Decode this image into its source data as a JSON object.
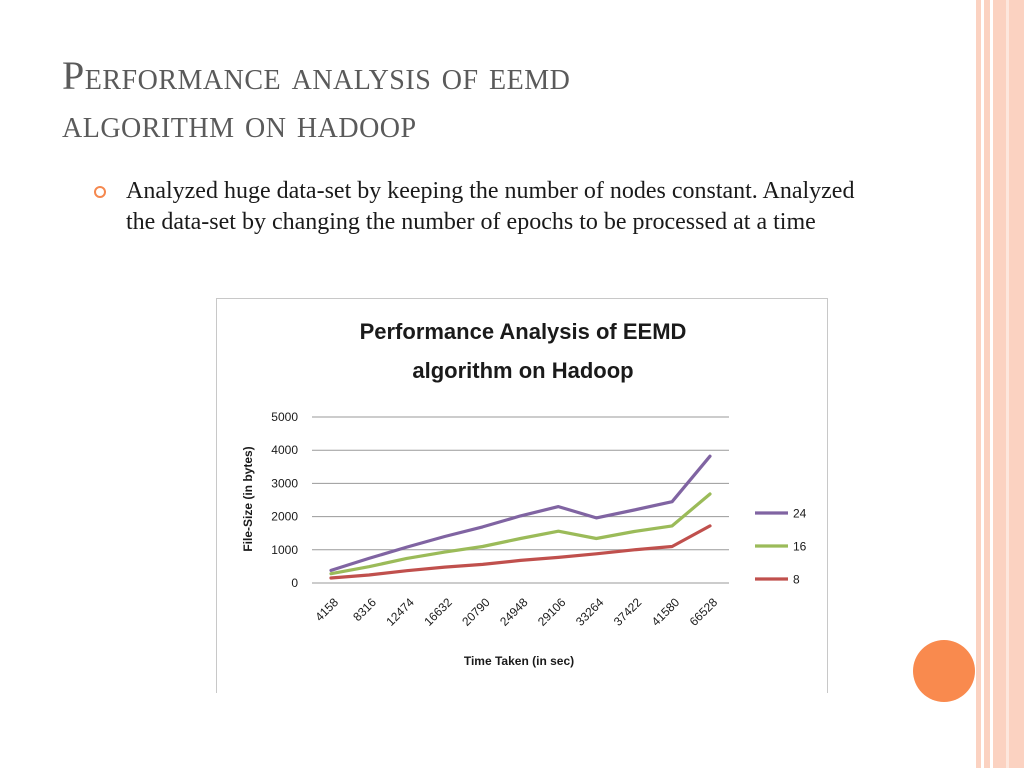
{
  "slide": {
    "title_line1": "Performance analysis of eemd",
    "title_line2": "algorithm on hadoop",
    "bullet": "Analyzed huge data-set by keeping the number of nodes constant. Analyzed the data-set by changing the number of epochs to be processed at a time"
  },
  "colors": {
    "accent": "#f98a4e",
    "bar_light": "#fbd2c1",
    "title_text": "#5a5a5a"
  },
  "chart_data": {
    "type": "line",
    "title_line1": "Performance Analysis of EEMD",
    "title_line2": "algorithm on Hadoop",
    "xlabel": "Time Taken  (in sec)",
    "ylabel": "File-Size  (in bytes)",
    "categories": [
      "4158",
      "8316",
      "12474",
      "16632",
      "20790",
      "24948",
      "29106",
      "33264",
      "37422",
      "41580",
      "66528"
    ],
    "yticks": [
      "0",
      "1000",
      "2000",
      "3000",
      "4000",
      "5000"
    ],
    "ylim": [
      0,
      5000
    ],
    "grid": true,
    "legend_position": "right",
    "series": [
      {
        "name": "24",
        "color": "#8064a2",
        "values": [
          380,
          740,
          1080,
          1400,
          1690,
          2020,
          2300,
          1960,
          2200,
          2450,
          3820
        ]
      },
      {
        "name": "16",
        "color": "#9bbb59",
        "values": [
          280,
          490,
          740,
          930,
          1100,
          1340,
          1560,
          1340,
          1550,
          1720,
          2680
        ]
      },
      {
        "name": "8",
        "color": "#c0504d",
        "values": [
          150,
          240,
          370,
          480,
          560,
          680,
          770,
          880,
          1000,
          1100,
          1720
        ]
      }
    ]
  }
}
